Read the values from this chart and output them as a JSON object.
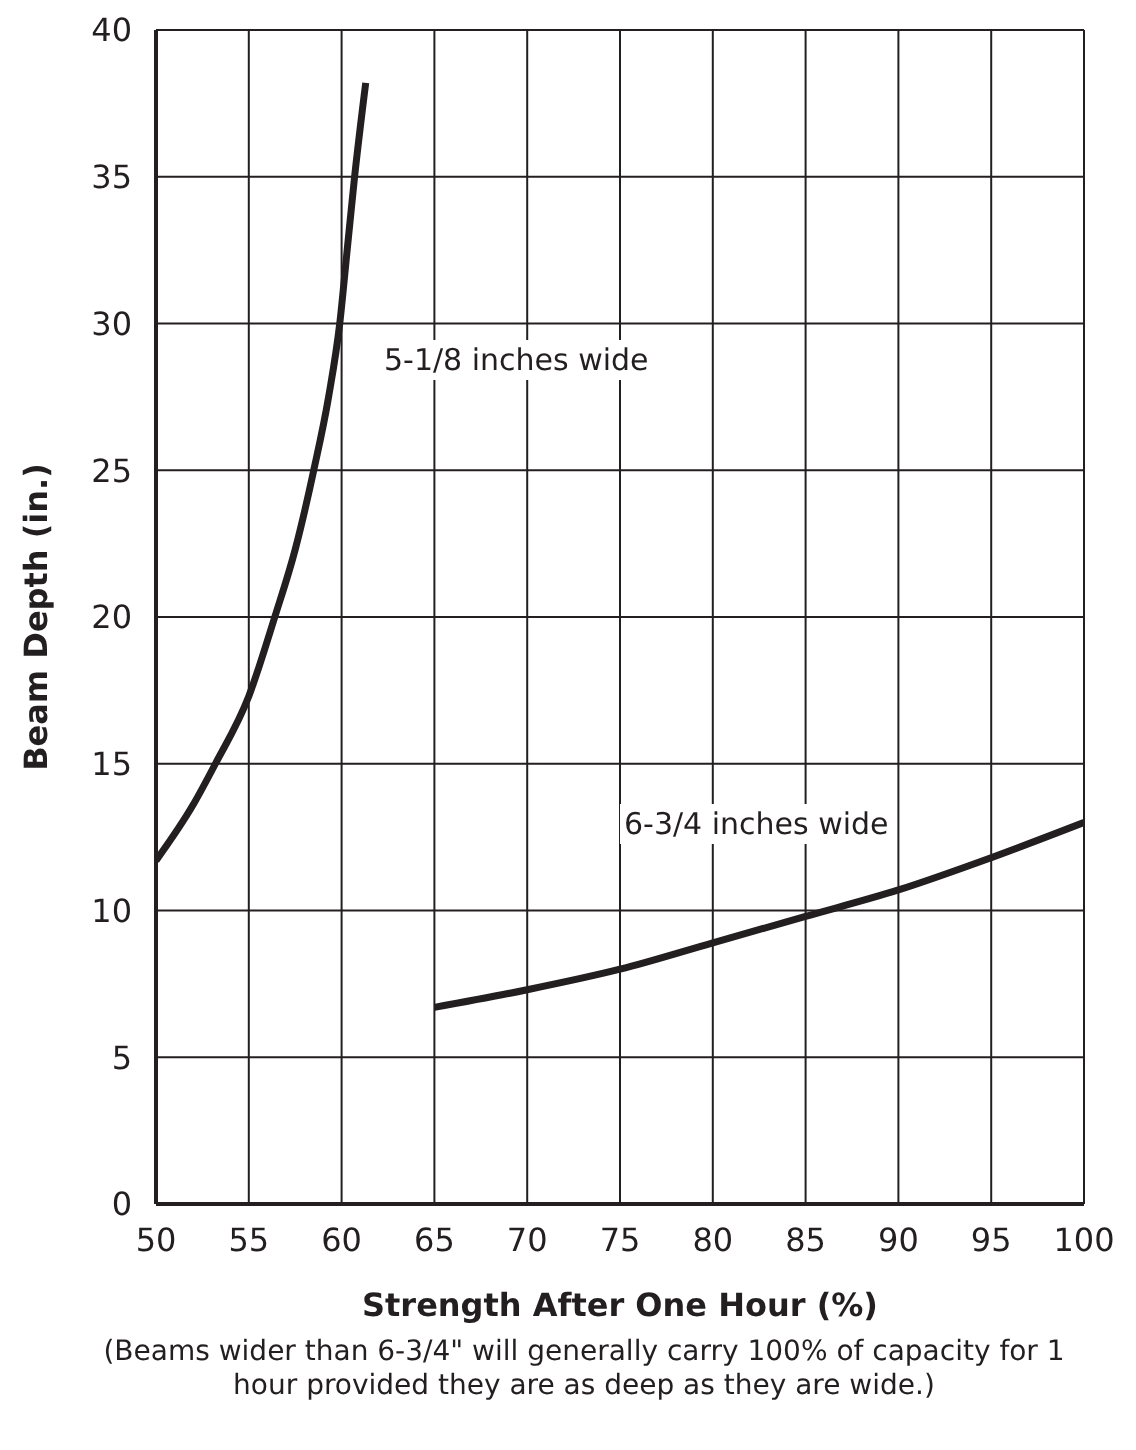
{
  "chart_data": {
    "type": "line",
    "xlabel": "Strength After One Hour (%)",
    "ylabel": "Beam Depth (in.)",
    "series": [
      {
        "color": "#231f20",
        "x": [
          50,
          52,
          53.2,
          55,
          56.4,
          57.5,
          58.5,
          59.3,
          59.9,
          60.3,
          60.7,
          61.3
        ],
        "values": [
          11.7,
          13.6,
          15,
          17.3,
          20,
          22.3,
          25,
          27.5,
          30,
          32.5,
          35,
          38.2
        ]
      },
      {
        "color": "#231f20",
        "x": [
          65,
          70,
          75,
          80,
          85,
          90,
          95,
          100
        ],
        "values": [
          6.7,
          7.3,
          8,
          8.9,
          9.8,
          10.7,
          11.8,
          13
        ]
      }
    ],
    "xlim": [
      50,
      100
    ],
    "xticks": [
      50,
      55,
      60,
      65,
      70,
      75,
      80,
      85,
      90,
      95,
      100
    ],
    "ylim": [
      0,
      40
    ],
    "yticks": [
      0,
      5,
      10,
      15,
      20,
      25,
      30,
      35,
      40
    ],
    "grid": true,
    "marker": "none",
    "line_style": "solid",
    "legend": false,
    "annotations": [
      "5-1/8 inches wide",
      "6-3/4 inches wide",
      "(Beams wider than 6-3/4\" will generally carry 100% of capacity for 1 hour provided they are as deep as they are wide.)"
    ]
  }
}
